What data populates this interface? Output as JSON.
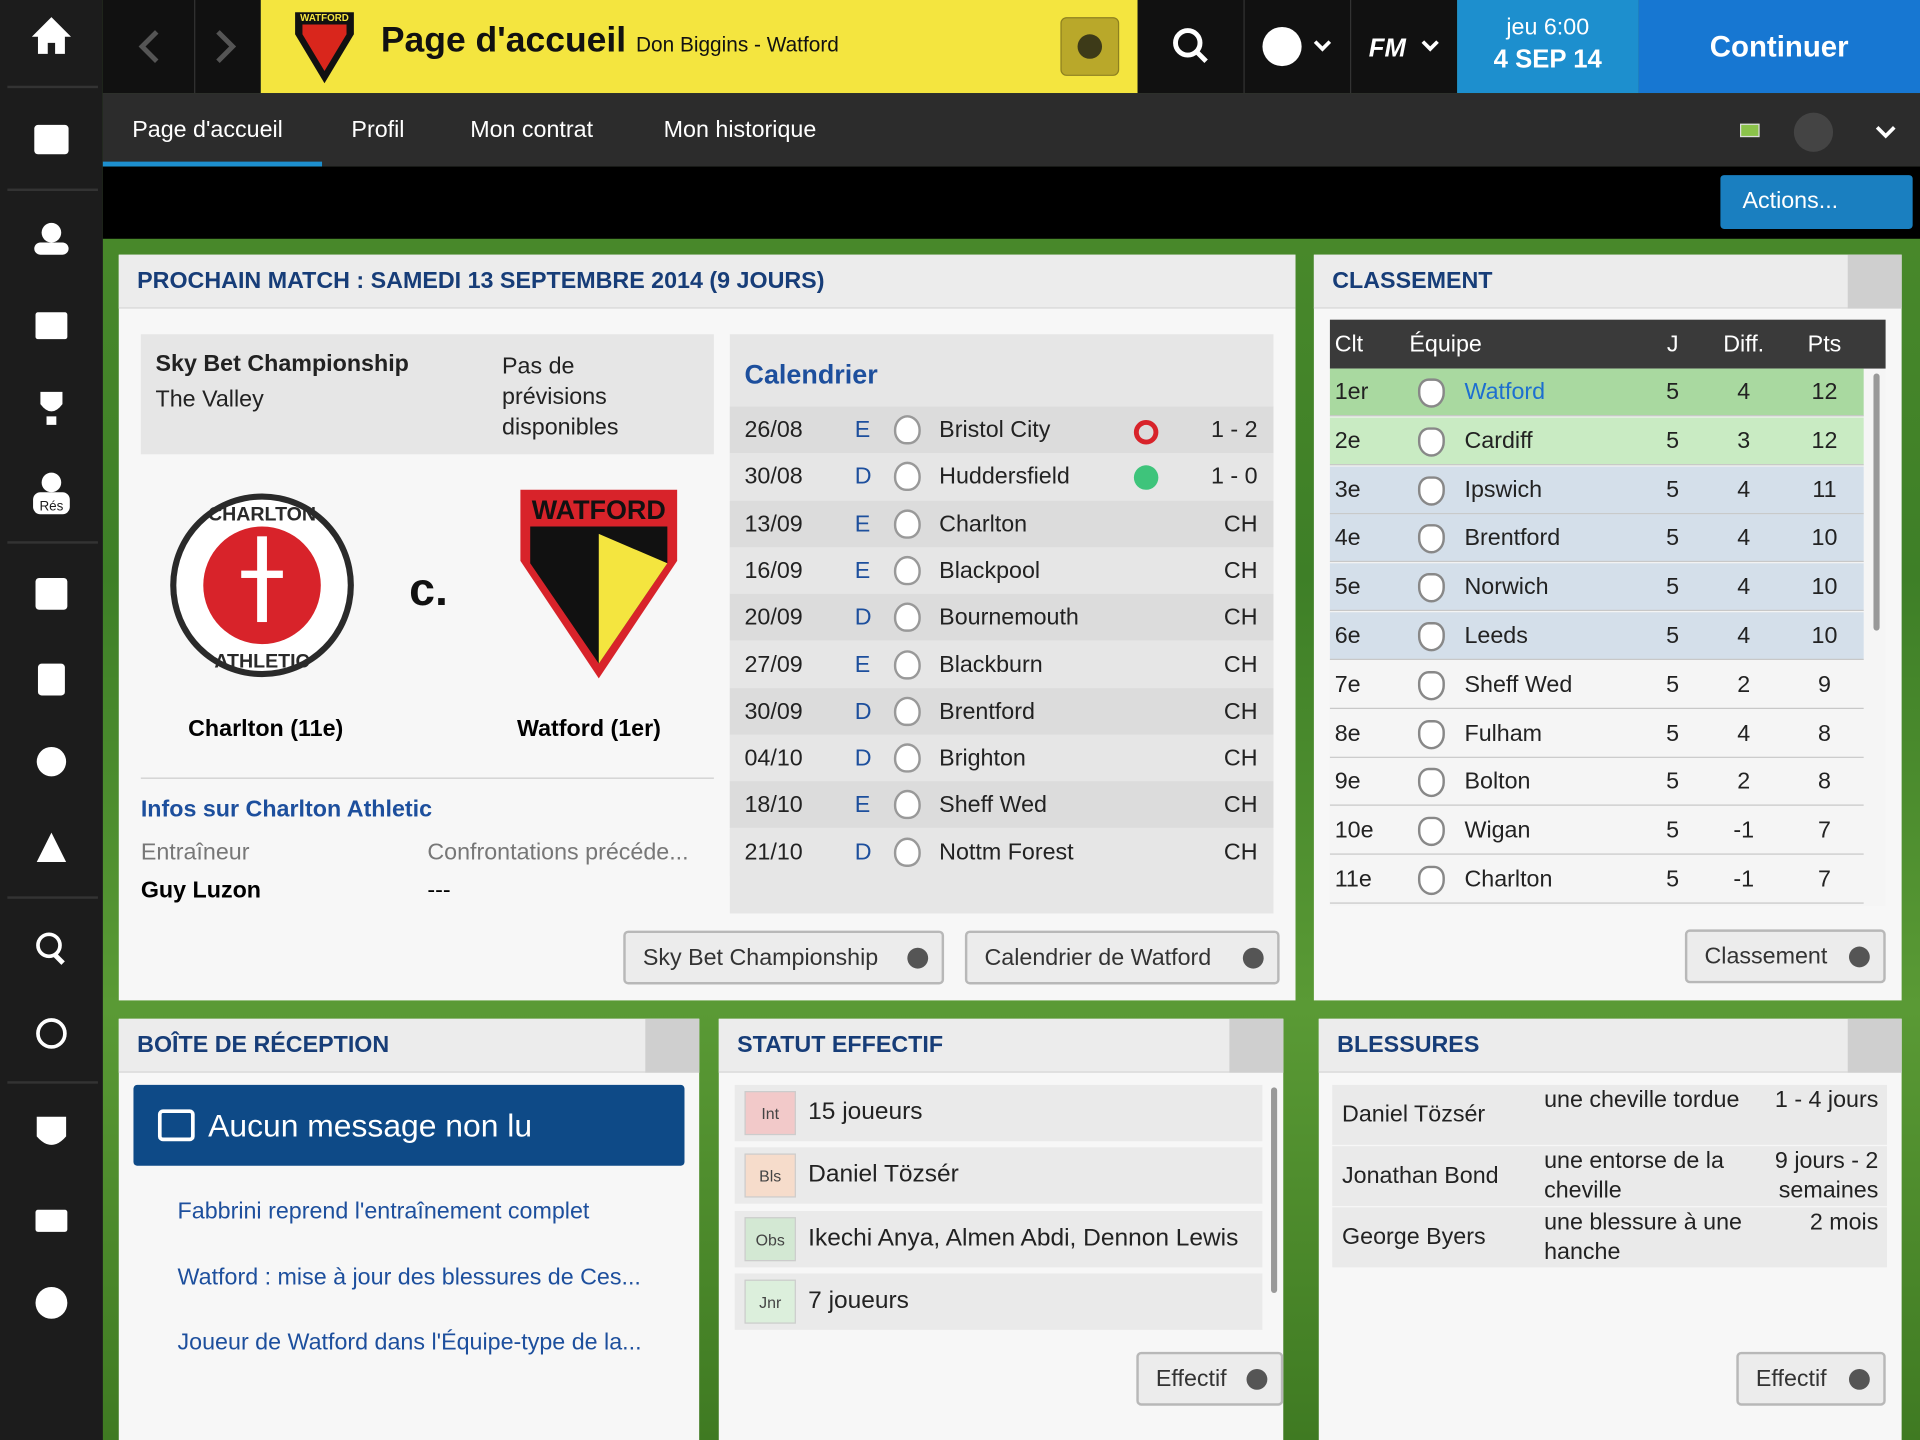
{
  "sidebar": {
    "res_label": "Rés"
  },
  "header": {
    "club_badge": "WATFORD",
    "title": "Page d'accueil",
    "subtitle": "Don Biggins - Watford",
    "fm": "FM",
    "date_day": "jeu 6:00",
    "date": "4 SEP 14",
    "continue": "Continuer"
  },
  "tabs": [
    "Page d'accueil",
    "Profil",
    "Mon contrat",
    "Mon historique"
  ],
  "actions": "Actions...",
  "next_match": {
    "title": "PROCHAIN MATCH : SAMEDI 13 SEPTEMBRE 2014 (9 JOURS)",
    "competition": "Sky Bet Championship",
    "venue": "The Valley",
    "prediction": "Pas de prévisions disponibles",
    "home_badge_top": "CHARLTON",
    "home_badge_bottom": "ATHLETIC",
    "away_badge": "WATFORD",
    "vs": "c.",
    "home": "Charlton (11e)",
    "away": "Watford (1er)",
    "info_title": "Infos sur Charlton Athletic",
    "info_headers": [
      "Entraîneur",
      "Confrontations précéde..."
    ],
    "info_values": [
      "Guy Luzon",
      "---"
    ],
    "buttons": [
      "Sky Bet Championship",
      "Calendrier de Watford"
    ]
  },
  "calendar": {
    "title": "Calendrier",
    "rows": [
      [
        "26/08",
        "E",
        "Bristol City",
        "1 - 2"
      ],
      [
        "30/08",
        "D",
        "Huddersfield",
        "1 - 0"
      ],
      [
        "13/09",
        "E",
        "Charlton",
        "CH"
      ],
      [
        "16/09",
        "E",
        "Blackpool",
        "CH"
      ],
      [
        "20/09",
        "D",
        "Bournemouth",
        "CH"
      ],
      [
        "27/09",
        "E",
        "Blackburn",
        "CH"
      ],
      [
        "30/09",
        "D",
        "Brentford",
        "CH"
      ],
      [
        "04/10",
        "D",
        "Brighton",
        "CH"
      ],
      [
        "18/10",
        "E",
        "Sheff Wed",
        "CH"
      ],
      [
        "21/10",
        "D",
        "Nottm Forest",
        "CH"
      ]
    ]
  },
  "standings": {
    "title": "CLASSEMENT",
    "headers": [
      "Clt",
      "Équipe",
      "J",
      "Diff.",
      "Pts"
    ],
    "rows": [
      [
        "1er",
        "Watford",
        5,
        4,
        12
      ],
      [
        "2e",
        "Cardiff",
        5,
        3,
        12
      ],
      [
        "3e",
        "Ipswich",
        5,
        4,
        11
      ],
      [
        "4e",
        "Brentford",
        5,
        4,
        10
      ],
      [
        "5e",
        "Norwich",
        5,
        4,
        10
      ],
      [
        "6e",
        "Leeds",
        5,
        4,
        10
      ],
      [
        "7e",
        "Sheff Wed",
        5,
        2,
        9
      ],
      [
        "8e",
        "Fulham",
        5,
        4,
        8
      ],
      [
        "9e",
        "Bolton",
        5,
        2,
        8
      ],
      [
        "10e",
        "Wigan",
        5,
        -1,
        7
      ],
      [
        "11e",
        "Charlton",
        5,
        -1,
        7
      ]
    ],
    "button": "Classement"
  },
  "inbox": {
    "title": "BOÎTE DE RÉCEPTION",
    "banner": "Aucun message non lu",
    "items": [
      "Fabbrini reprend l'entraînement complet",
      "Watford : mise à jour des blessures de Ces...",
      "Joueur de Watford dans l'Équipe-type de la..."
    ]
  },
  "squad_status": {
    "title": "STATUT EFFECTIF",
    "rows": [
      [
        "Int",
        "15 joueurs"
      ],
      [
        "Bls",
        "Daniel Tözsér"
      ],
      [
        "Obs",
        "Ikechi Anya, Almen Abdi, Dennon Lewis"
      ],
      [
        "Jnr",
        "7 joueurs"
      ]
    ],
    "button": "Effectif"
  },
  "injuries": {
    "title": "BLESSURES",
    "rows": [
      [
        "Daniel Tözsér",
        "une cheville tordue",
        "1 - 4 jours"
      ],
      [
        "Jonathan Bond",
        "une entorse de la cheville",
        "9 jours - 2 semaines"
      ],
      [
        "George Byers",
        "une blessure à une hanche",
        "2 mois"
      ]
    ],
    "button": "Effectif"
  }
}
